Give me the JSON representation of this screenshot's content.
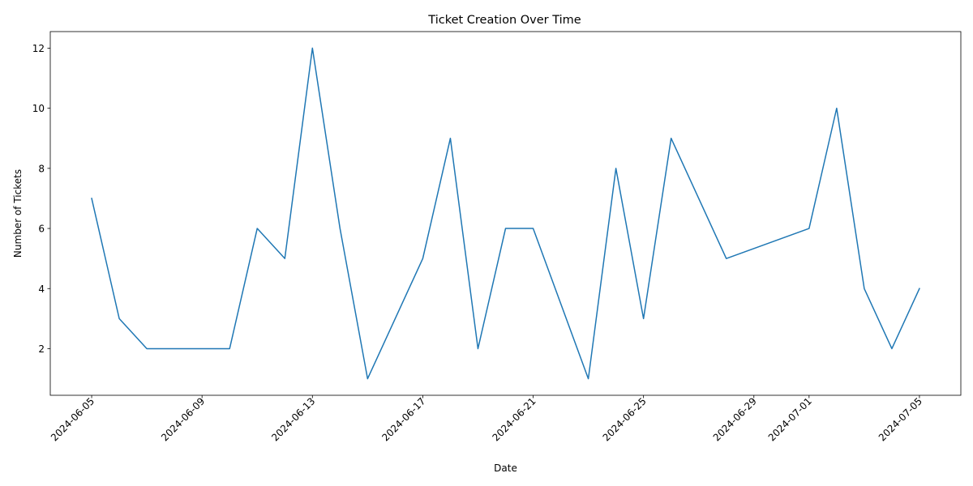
{
  "chart_data": {
    "type": "line",
    "title": "Ticket Creation Over Time",
    "xlabel": "Date",
    "ylabel": "Number of Tickets",
    "x_tick_labels": [
      "2024-06-05",
      "2024-06-09",
      "2024-06-13",
      "2024-06-17",
      "2024-06-21",
      "2024-06-25",
      "2024-06-29",
      "2024-07-01",
      "2024-07-05"
    ],
    "y_tick_labels": [
      "2",
      "4",
      "6",
      "8",
      "10",
      "12"
    ],
    "xlim": [
      "2024-06-03 12:00",
      "2024-07-06 12:00"
    ],
    "ylim": [
      0.45,
      12.55
    ],
    "grid": false,
    "line_color": "#1f77b4",
    "series": [
      {
        "x": [
          "2024-06-05",
          "2024-06-06",
          "2024-06-07",
          "2024-06-10",
          "2024-06-11",
          "2024-06-12",
          "2024-06-13",
          "2024-06-14",
          "2024-06-15",
          "2024-06-17",
          "2024-06-18",
          "2024-06-19",
          "2024-06-20",
          "2024-06-21",
          "2024-06-23",
          "2024-06-24",
          "2024-06-25",
          "2024-06-26",
          "2024-06-28",
          "2024-07-01",
          "2024-07-02",
          "2024-07-03",
          "2024-07-04",
          "2024-07-05"
        ],
        "values": [
          7,
          3,
          2,
          2,
          6,
          5,
          12,
          6,
          1,
          5,
          9,
          2,
          6,
          6,
          1,
          8,
          3,
          9,
          5,
          6,
          10,
          4,
          2,
          4
        ]
      }
    ]
  }
}
